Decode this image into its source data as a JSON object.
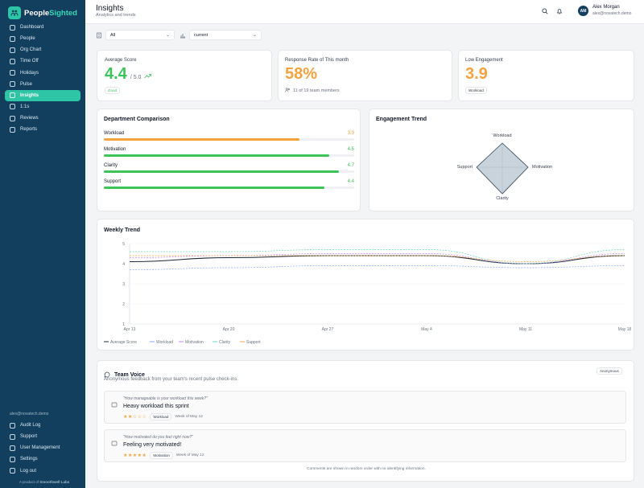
{
  "brand": {
    "name_a": "People",
    "name_b": "Sighted"
  },
  "nav": [
    {
      "label": "Dashboard",
      "icon": "grid-icon"
    },
    {
      "label": "People",
      "icon": "people-icon"
    },
    {
      "label": "Org Chart",
      "icon": "org-chart-icon"
    },
    {
      "label": "Time Off",
      "icon": "calendar-icon"
    },
    {
      "label": "Holidays",
      "icon": "calendar-icon"
    },
    {
      "label": "Pulse",
      "icon": "chat-icon"
    },
    {
      "label": "Insights",
      "icon": "trend-icon"
    },
    {
      "label": "1:1s",
      "icon": "chat-icon"
    },
    {
      "label": "Reviews",
      "icon": "document-icon"
    },
    {
      "label": "Reports",
      "icon": "document-icon"
    }
  ],
  "nav_active": "Insights",
  "bottom": {
    "email": "alex@novatech.demo",
    "items": [
      "Audit Log",
      "Support",
      "User Management",
      "Settings",
      "Log out"
    ],
    "product_a": "A product of ",
    "product_b": "Smoothwell Labs"
  },
  "header": {
    "title": "Insights",
    "subtitle": "Analytics and trends"
  },
  "user": {
    "initials": "AM",
    "name": "Alex Morgan",
    "email": "alex@novatech.demo"
  },
  "filters": {
    "team": "All",
    "period": "current"
  },
  "kpis": {
    "avg": {
      "label": "Average Score",
      "value": "4.4",
      "of": "/ 5.0",
      "badge": "Good"
    },
    "response": {
      "label": "Response Rate of This month",
      "value": "58%",
      "sub": "11 of 19 team members"
    },
    "low": {
      "label": "Low Engagement",
      "value": "3.9",
      "badge": "Workload"
    }
  },
  "colors": {
    "orange": "#f4a340",
    "green": "#3cc35a",
    "navy": "#123f5e",
    "teal": "#2ec4a6"
  },
  "dept": {
    "title": "Department Comparison",
    "rows": [
      {
        "name": "Workload",
        "value": "3.9",
        "fraction": 0.78,
        "color": "#f4a340"
      },
      {
        "name": "Motivation",
        "value": "4.5",
        "fraction": 0.9,
        "color": "#3cc35a"
      },
      {
        "name": "Clarity",
        "value": "4.7",
        "fraction": 0.94,
        "color": "#3cc35a"
      },
      {
        "name": "Support",
        "value": "4.4",
        "fraction": 0.88,
        "color": "#3cc35a"
      }
    ]
  },
  "radar": {
    "title": "Engagement Trend",
    "labels": [
      "Workload",
      "Motivation",
      "Clarity",
      "Support"
    ]
  },
  "weekly": {
    "title": "Weekly Trend"
  },
  "chart_data": {
    "type": "line",
    "title": "Weekly Trend",
    "x": [
      "Apr 13",
      "Apr 20",
      "Apr 27",
      "May 4",
      "May 11",
      "May 18"
    ],
    "ylim": [
      1,
      5
    ],
    "yticks": [
      "5",
      "4",
      "3",
      "2",
      "1"
    ],
    "series": [
      {
        "name": "Average Score",
        "color": "#1f2937",
        "values": [
          4.1,
          4.3,
          4.4,
          4.4,
          4.0,
          4.4
        ]
      },
      {
        "name": "Workload",
        "color": "#8aa8ff",
        "values": [
          3.7,
          3.8,
          3.9,
          3.9,
          3.8,
          3.9
        ]
      },
      {
        "name": "Motivation",
        "color": "#c084fc",
        "values": [
          4.3,
          4.4,
          4.5,
          4.5,
          4.0,
          4.5
        ]
      },
      {
        "name": "Clarity",
        "color": "#67d8c0",
        "values": [
          4.6,
          4.6,
          4.7,
          4.7,
          4.0,
          4.7
        ]
      },
      {
        "name": "Support",
        "color": "#f4a340",
        "values": [
          4.4,
          4.4,
          4.4,
          4.4,
          4.1,
          4.4
        ]
      }
    ],
    "grid": true,
    "legend": "bottom"
  },
  "voice": {
    "title": "Team Voice",
    "badge": "Anonymous",
    "subtitle": "Anonymous feedback from your team's recent pulse check-ins.",
    "items": [
      {
        "question": "\"How manageable is your workload this week?\"",
        "answer": "Heavy workload this sprint",
        "stars": "★★☆☆☆",
        "tag": "Workload",
        "week": "Week of May 12"
      },
      {
        "question": "\"How motivated do you feel right now?\"",
        "answer": "Feeling very motivated!",
        "stars": "★★★★★",
        "tag": "Motivation",
        "week": "Week of May 12"
      }
    ],
    "footer": "Comments are shown in random order with no identifying information."
  }
}
